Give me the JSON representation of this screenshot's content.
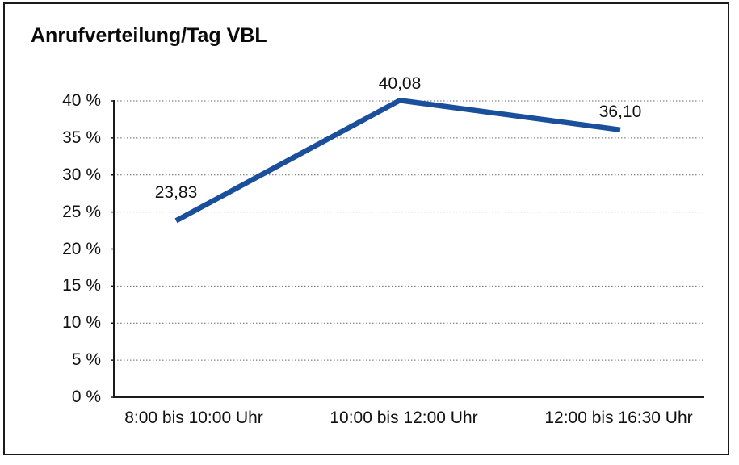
{
  "chart_data": {
    "type": "line",
    "title": "Anrufverteilung/Tag VBL",
    "categories": [
      "8:00 bis 10:00 Uhr",
      "10:00 bis 12:00 Uhr",
      "12:00 bis 16:30 Uhr"
    ],
    "series": [
      {
        "name": "Anrufverteilung",
        "values": [
          23.83,
          40.08,
          36.1
        ],
        "value_labels": [
          "23,83",
          "40,08",
          "36,10"
        ]
      }
    ],
    "xlabel": "",
    "ylabel": "",
    "ylim": [
      0,
      40
    ],
    "y_ticks": [
      0,
      5,
      10,
      15,
      20,
      25,
      30,
      35,
      40
    ],
    "y_tick_labels": [
      "0 %",
      "5 %",
      "10 %",
      "15 %",
      "20 %",
      "25 %",
      "30 %",
      "35 %",
      "40 %"
    ],
    "grid": "horizontal-dotted",
    "legend_position": "none",
    "line_color": "#1A4F9B",
    "axis_color": "#1a1a1a",
    "grid_color": "#666666",
    "text_color": "#111111"
  }
}
